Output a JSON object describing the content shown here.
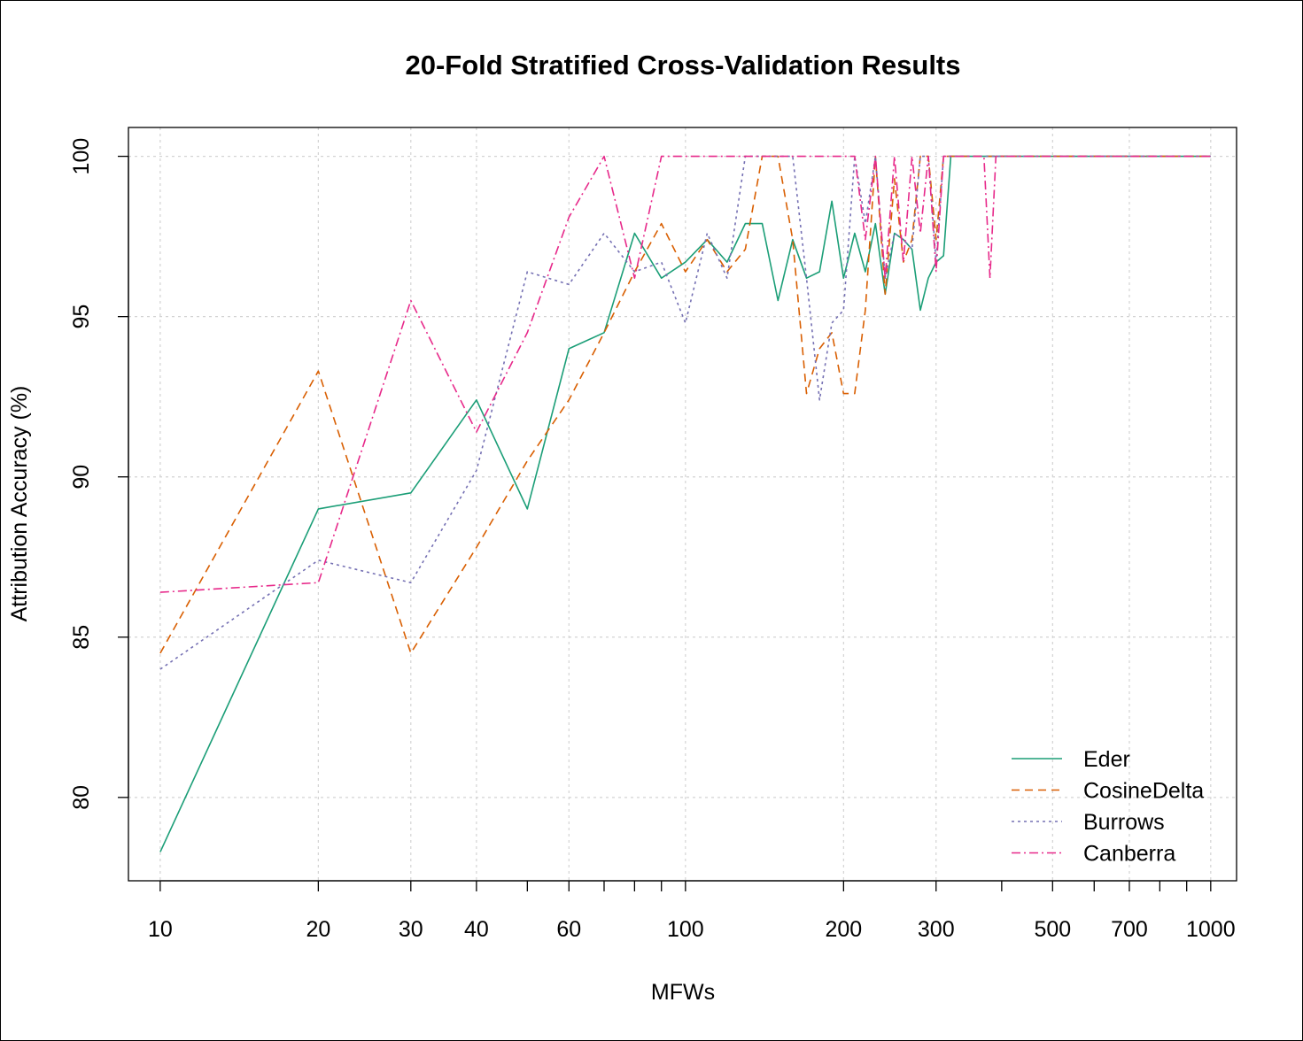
{
  "chart_data": {
    "type": "line",
    "title": "20-Fold Stratified Cross-Validation Results",
    "xlabel": "MFWs",
    "ylabel": "Attribution Accuracy (%)",
    "x_scale": "log",
    "xlim": [
      8.7,
      1120
    ],
    "ylim": [
      77.4,
      100.9
    ],
    "x_ticks": [
      10,
      20,
      30,
      40,
      50,
      60,
      70,
      80,
      90,
      100,
      200,
      300,
      400,
      500,
      600,
      700,
      800,
      900,
      1000
    ],
    "x_tick_labels": [
      "10",
      "20",
      "30",
      "40",
      "",
      "60",
      "",
      "",
      "",
      "100",
      "200",
      "300",
      "",
      "500",
      "",
      "700",
      "",
      "",
      "1000"
    ],
    "y_ticks": [
      80,
      85,
      90,
      95,
      100
    ],
    "y_tick_labels": [
      "80",
      "85",
      "90",
      "95",
      "100"
    ],
    "grid": true,
    "legend_position": "bottom-right",
    "series": [
      {
        "name": "Eder",
        "color": "#1b9e77",
        "dash": "solid",
        "points": [
          [
            10,
            78.3
          ],
          [
            20,
            89.0
          ],
          [
            30,
            89.5
          ],
          [
            40,
            92.4
          ],
          [
            50,
            89.0
          ],
          [
            60,
            94.0
          ],
          [
            70,
            94.5
          ],
          [
            80,
            97.6
          ],
          [
            90,
            96.2
          ],
          [
            100,
            96.7
          ],
          [
            110,
            97.4
          ],
          [
            120,
            96.7
          ],
          [
            130,
            97.9
          ],
          [
            140,
            97.9
          ],
          [
            150,
            95.5
          ],
          [
            160,
            97.4
          ],
          [
            170,
            96.2
          ],
          [
            180,
            96.4
          ],
          [
            190,
            98.6
          ],
          [
            200,
            96.2
          ],
          [
            210,
            97.6
          ],
          [
            220,
            96.4
          ],
          [
            230,
            97.9
          ],
          [
            240,
            95.7
          ],
          [
            250,
            97.6
          ],
          [
            260,
            97.4
          ],
          [
            270,
            97.1
          ],
          [
            280,
            95.2
          ],
          [
            290,
            96.2
          ],
          [
            300,
            96.7
          ],
          [
            310,
            96.9
          ],
          [
            320,
            100
          ],
          [
            400,
            100
          ],
          [
            500,
            100
          ],
          [
            600,
            100
          ],
          [
            700,
            100
          ],
          [
            800,
            100
          ],
          [
            900,
            100
          ],
          [
            1000,
            100
          ]
        ]
      },
      {
        "name": "CosineDelta",
        "color": "#d95f02",
        "dash": "9,6",
        "points": [
          [
            10,
            84.5
          ],
          [
            20,
            93.3
          ],
          [
            30,
            84.5
          ],
          [
            40,
            87.8
          ],
          [
            50,
            90.5
          ],
          [
            60,
            92.4
          ],
          [
            70,
            94.5
          ],
          [
            80,
            96.4
          ],
          [
            90,
            97.9
          ],
          [
            100,
            96.4
          ],
          [
            110,
            97.4
          ],
          [
            120,
            96.4
          ],
          [
            130,
            97.1
          ],
          [
            140,
            100
          ],
          [
            150,
            100
          ],
          [
            160,
            97.4
          ],
          [
            170,
            92.6
          ],
          [
            180,
            94.0
          ],
          [
            190,
            94.5
          ],
          [
            200,
            92.6
          ],
          [
            210,
            92.6
          ],
          [
            220,
            95.2
          ],
          [
            230,
            100
          ],
          [
            240,
            95.7
          ],
          [
            250,
            99.3
          ],
          [
            260,
            96.7
          ],
          [
            270,
            97.4
          ],
          [
            280,
            100
          ],
          [
            290,
            100
          ],
          [
            300,
            97.4
          ],
          [
            310,
            100
          ],
          [
            320,
            100
          ],
          [
            400,
            100
          ],
          [
            500,
            100
          ],
          [
            600,
            100
          ],
          [
            700,
            100
          ],
          [
            800,
            100
          ],
          [
            900,
            100
          ],
          [
            1000,
            100
          ]
        ]
      },
      {
        "name": "Burrows",
        "color": "#7570b3",
        "dash": "3,4",
        "points": [
          [
            10,
            84.0
          ],
          [
            20,
            87.4
          ],
          [
            30,
            86.7
          ],
          [
            40,
            90.2
          ],
          [
            50,
            96.4
          ],
          [
            60,
            96.0
          ],
          [
            70,
            97.6
          ],
          [
            80,
            96.4
          ],
          [
            90,
            96.7
          ],
          [
            100,
            94.8
          ],
          [
            110,
            97.6
          ],
          [
            120,
            96.2
          ],
          [
            130,
            100
          ],
          [
            140,
            100
          ],
          [
            150,
            100
          ],
          [
            160,
            100
          ],
          [
            170,
            96.2
          ],
          [
            180,
            92.4
          ],
          [
            190,
            94.8
          ],
          [
            200,
            95.2
          ],
          [
            210,
            100
          ],
          [
            220,
            97.9
          ],
          [
            230,
            100
          ],
          [
            240,
            96.2
          ],
          [
            250,
            97.6
          ],
          [
            260,
            97.4
          ],
          [
            270,
            97.1
          ],
          [
            280,
            100
          ],
          [
            290,
            100
          ],
          [
            300,
            96.7
          ],
          [
            310,
            100
          ],
          [
            320,
            100
          ],
          [
            400,
            100
          ],
          [
            500,
            100
          ],
          [
            600,
            100
          ],
          [
            700,
            100
          ],
          [
            800,
            100
          ],
          [
            900,
            100
          ],
          [
            1000,
            100
          ]
        ]
      },
      {
        "name": "Canberra",
        "color": "#e7298a",
        "dash": "10,4,2,4",
        "points": [
          [
            10,
            86.4
          ],
          [
            20,
            86.7
          ],
          [
            30,
            95.5
          ],
          [
            40,
            91.4
          ],
          [
            50,
            94.5
          ],
          [
            60,
            98.1
          ],
          [
            70,
            100
          ],
          [
            80,
            96.2
          ],
          [
            90,
            100
          ],
          [
            100,
            100
          ],
          [
            110,
            100
          ],
          [
            120,
            100
          ],
          [
            130,
            100
          ],
          [
            140,
            100
          ],
          [
            150,
            100
          ],
          [
            160,
            100
          ],
          [
            170,
            100
          ],
          [
            180,
            100
          ],
          [
            190,
            100
          ],
          [
            200,
            100
          ],
          [
            210,
            100
          ],
          [
            220,
            97.4
          ],
          [
            230,
            100
          ],
          [
            240,
            96.2
          ],
          [
            250,
            100
          ],
          [
            260,
            96.7
          ],
          [
            270,
            100
          ],
          [
            280,
            97.6
          ],
          [
            290,
            100
          ],
          [
            300,
            96.4
          ],
          [
            310,
            100
          ],
          [
            320,
            100
          ],
          [
            330,
            100
          ],
          [
            340,
            100
          ],
          [
            350,
            100
          ],
          [
            360,
            100
          ],
          [
            370,
            100
          ],
          [
            380,
            96.2
          ],
          [
            390,
            100
          ],
          [
            400,
            100
          ],
          [
            500,
            100
          ],
          [
            600,
            100
          ],
          [
            700,
            100
          ],
          [
            800,
            100
          ],
          [
            900,
            100
          ],
          [
            1000,
            100
          ]
        ]
      }
    ]
  }
}
